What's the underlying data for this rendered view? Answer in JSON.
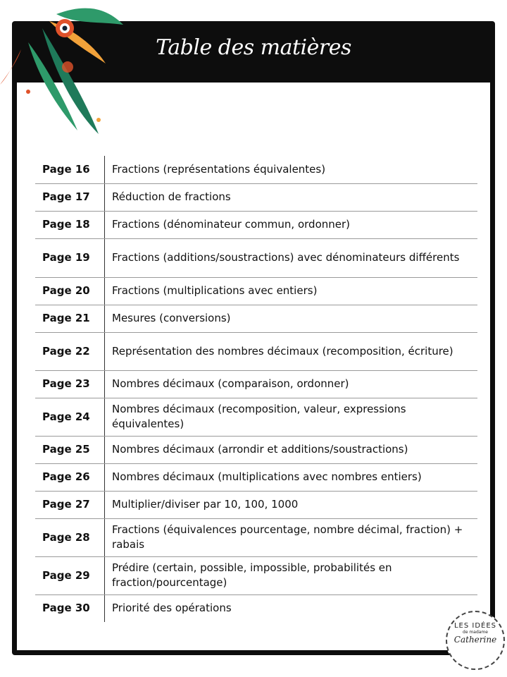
{
  "header": {
    "title": "Table des matières"
  },
  "rows": [
    {
      "page": "Page 16",
      "topic": "Fractions (représentations équivalentes)",
      "h": 39
    },
    {
      "page": "Page 17",
      "topic": "Réduction de fractions",
      "h": 39
    },
    {
      "page": "Page 18",
      "topic": "Fractions (dénominateur commun, ordonner)",
      "h": 39
    },
    {
      "page": "Page 19",
      "topic": "Fractions (additions/soustractions) avec dénominateurs différents",
      "h": 55
    },
    {
      "page": "Page 20",
      "topic": "Fractions (multiplications avec entiers)",
      "h": 39
    },
    {
      "page": "Page 21",
      "topic": "Mesures (conversions)",
      "h": 39
    },
    {
      "page": "Page 22",
      "topic": "Représentation des nombres décimaux (recomposition, écriture)",
      "h": 54
    },
    {
      "page": "Page 23",
      "topic": "Nombres décimaux (comparaison, ordonner)",
      "h": 39
    },
    {
      "page": "Page 24",
      "topic": "Nombres décimaux (recomposition, valeur, expressions équivalentes)",
      "h": 54
    },
    {
      "page": "Page 25",
      "topic": "Nombres décimaux (arrondir et additions/soustractions)",
      "h": 39
    },
    {
      "page": "Page 26",
      "topic": "Nombres décimaux (multiplications avec nombres entiers)",
      "h": 39
    },
    {
      "page": "Page 27",
      "topic": "Multiplier/diviser par 10, 100, 1000",
      "h": 39
    },
    {
      "page": "Page 28",
      "topic": "Fractions (équivalences pourcentage, nombre décimal, fraction) + rabais",
      "h": 54
    },
    {
      "page": "Page 29",
      "topic": "Prédire (certain, possible, impossible, probabilités en fraction/pourcentage)",
      "h": 54
    },
    {
      "page": "Page 30",
      "topic": "Priorité des opérations",
      "h": 39
    }
  ],
  "logo": {
    "line1": "LES IDÉES",
    "line2": "de madame",
    "line3": "Catherine"
  }
}
